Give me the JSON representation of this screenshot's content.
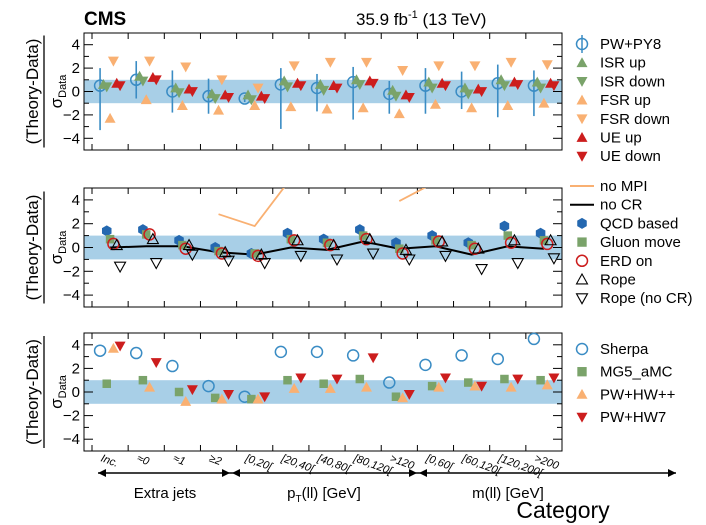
{
  "header": {
    "experiment": "CMS",
    "lumi": "35.9 fb",
    "lumi_sup": "-1",
    "energy": " (13 TeV)"
  },
  "ylabel_main": "(Theory-Data)",
  "ylabel_sub": "σ",
  "ylabel_subscript": "Data",
  "xlabel": "Category",
  "groups": [
    "Extra jets",
    "p",
    "(ll) [GeV]",
    "m(ll) [GeV]"
  ],
  "group_sub": "T",
  "chart_data": {
    "type": "scatter",
    "categories": [
      "Inc.",
      "≈0",
      "≈1",
      "≥2",
      "[0,20[",
      "[20,40[",
      "[40,80[",
      "[80,120[",
      ">120",
      "[0,60[",
      "[60,120[",
      "[120,200[",
      ">200"
    ],
    "ylim": [
      -5,
      5
    ],
    "yticks": [
      "4",
      "2",
      "0",
      "−2",
      "−4"
    ],
    "band": [
      -1,
      1
    ],
    "panels": [
      {
        "series": [
          {
            "name": "PW+PY8",
            "marker": "circle-open",
            "color": "#3a8cc4",
            "values": [
              0.5,
              1.0,
              0.0,
              -0.4,
              -0.6,
              0.6,
              0.3,
              0.8,
              -0.2,
              0.5,
              0.0,
              0.7,
              0.5
            ],
            "err_low": [
              3.8,
              1.6,
              1.8,
              1.5,
              0.3,
              3.8,
              2.0,
              3.2,
              1.7,
              2.4,
              1.5,
              2.9,
              2.6
            ],
            "err_high": [
              1.5,
              1.6,
              1.8,
              1.5,
              0.3,
              1.4,
              1.2,
              1.3,
              1.1,
              1.5,
              1.7,
              1.6,
              1.3
            ]
          },
          {
            "name": "ISR up",
            "marker": "triangle-up",
            "color": "#7aa36a",
            "values": [
              0.6,
              1.3,
              0.3,
              -0.2,
              -0.3,
              0.9,
              0.6,
              1.0,
              0.1,
              0.8,
              0.3,
              1.0,
              0.8
            ]
          },
          {
            "name": "ISR down",
            "marker": "triangle-down",
            "color": "#7aa36a",
            "values": [
              0.4,
              0.9,
              -0.1,
              -0.6,
              -0.7,
              0.4,
              0.1,
              0.6,
              -0.4,
              0.3,
              -0.2,
              0.5,
              0.3
            ]
          },
          {
            "name": "FSR up",
            "marker": "triangle-up",
            "color": "#f9b072",
            "values": [
              -2.3,
              -0.7,
              -1.2,
              -1.6,
              -1.2,
              -1.3,
              -1.5,
              -1.4,
              -1.9,
              -1.1,
              -1.4,
              -1.2,
              -1.0
            ]
          },
          {
            "name": "FSR down",
            "marker": "triangle-down",
            "color": "#f9b072",
            "values": [
              2.6,
              2.6,
              2.1,
              1.0,
              0.3,
              2.2,
              2.5,
              2.5,
              1.8,
              2.2,
              2.2,
              2.5,
              2.3
            ]
          },
          {
            "name": "UE up",
            "marker": "triangle-up",
            "color": "#cc1d1d",
            "values": [
              0.7,
              1.2,
              0.2,
              -0.3,
              -0.4,
              0.7,
              0.5,
              0.9,
              -0.3,
              0.7,
              0.2,
              0.8,
              0.7
            ]
          },
          {
            "name": "UE down",
            "marker": "triangle-down",
            "color": "#cc1d1d",
            "values": [
              0.5,
              1.0,
              0.0,
              -0.5,
              -0.6,
              0.5,
              0.3,
              0.7,
              -0.5,
              0.5,
              0.0,
              0.6,
              0.5
            ]
          }
        ]
      },
      {
        "series": [
          {
            "name": "no MPI",
            "marker": "line",
            "color": "#f9b072",
            "values": [
              null,
              null,
              null,
              2.8,
              1.8,
              5.8,
              null,
              null,
              3.9,
              5.5,
              null,
              null,
              null
            ]
          },
          {
            "name": "no CR",
            "marker": "line",
            "color": "#000000",
            "values": [
              0.0,
              0.1,
              0.1,
              -0.4,
              -0.6,
              0.0,
              -0.2,
              0.5,
              -0.1,
              0.1,
              -0.6,
              0.1,
              -0.1
            ]
          },
          {
            "name": "QCD based",
            "marker": "hexagon",
            "color": "#2468b0",
            "values": [
              1.4,
              1.5,
              0.6,
              0.0,
              -0.5,
              1.2,
              0.7,
              1.5,
              0.4,
              1.0,
              0.4,
              1.8,
              1.2
            ]
          },
          {
            "name": "Gluon move",
            "marker": "square",
            "color": "#7aa36a",
            "values": [
              0.7,
              1.1,
              0.2,
              -0.3,
              -0.5,
              0.7,
              0.4,
              1.0,
              -0.1,
              0.6,
              0.2,
              1.0,
              0.6
            ]
          },
          {
            "name": "ERD on",
            "marker": "circle-open",
            "color": "#cc1d1d",
            "values": [
              0.3,
              1.1,
              -0.1,
              -0.5,
              -0.7,
              0.6,
              0.2,
              0.7,
              -0.5,
              0.5,
              -0.1,
              0.4,
              0.3
            ]
          },
          {
            "name": "Rope",
            "marker": "triangle-up-open",
            "color": "#000000",
            "values": [
              0.2,
              0.7,
              0.2,
              -0.4,
              -0.6,
              0.6,
              0.2,
              0.7,
              -0.2,
              0.5,
              -0.1,
              0.6,
              0.6
            ]
          },
          {
            "name": "Rope (no CR)",
            "marker": "triangle-down-open",
            "color": "#000000",
            "values": [
              -1.6,
              -1.3,
              -0.6,
              -1.1,
              -1.3,
              -0.7,
              -1.0,
              -0.5,
              -1.0,
              -0.7,
              -1.8,
              -1.3,
              -0.9
            ]
          }
        ]
      },
      {
        "series": [
          {
            "name": "Sherpa",
            "marker": "circle-open",
            "color": "#3a8cc4",
            "values": [
              3.5,
              3.3,
              2.2,
              0.5,
              -0.4,
              3.4,
              3.4,
              3.1,
              0.8,
              2.3,
              3.1,
              2.8,
              4.5
            ]
          },
          {
            "name": "MG5_aMC",
            "marker": "square",
            "color": "#7aa36a",
            "values": [
              0.7,
              1.0,
              0.0,
              -0.5,
              -0.6,
              1.0,
              0.7,
              1.1,
              -0.4,
              0.5,
              0.8,
              1.1,
              1.0
            ]
          },
          {
            "name": "PW+HW++",
            "marker": "triangle-up",
            "color": "#f9b072",
            "values": [
              3.7,
              0.4,
              -0.8,
              -0.6,
              -0.6,
              0.3,
              0.3,
              0.4,
              -0.5,
              0.4,
              0.5,
              0.4,
              0.6
            ]
          },
          {
            "name": "PW+HW7",
            "marker": "triangle-down",
            "color": "#cc1d1d",
            "values": [
              3.9,
              2.5,
              0.2,
              -0.2,
              -0.4,
              1.2,
              1.1,
              2.9,
              -0.2,
              1.2,
              0.5,
              1.1,
              1.2
            ]
          }
        ]
      }
    ]
  }
}
